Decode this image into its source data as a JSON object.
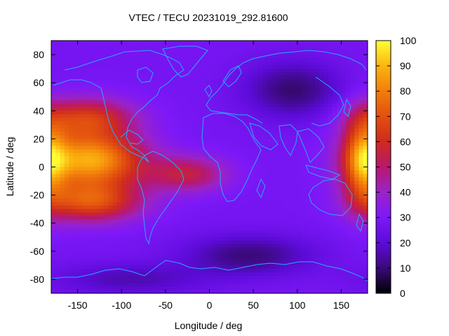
{
  "chart_data": {
    "type": "heatmap",
    "title": "VTEC / TECU 20231019_292.81600",
    "xlabel": "Longitude / deg",
    "ylabel": "Latitude / deg",
    "xlim": [
      -180,
      180
    ],
    "ylim": [
      -90,
      90
    ],
    "xticks": [
      "-150",
      "-100",
      "-50",
      "0",
      "50",
      "100",
      "150"
    ],
    "xtick_values": [
      -150,
      -100,
      -50,
      0,
      50,
      100,
      150
    ],
    "yticks": [
      "80",
      "60",
      "40",
      "20",
      "0",
      "-20",
      "-40",
      "-60",
      "-80"
    ],
    "ytick_values": [
      80,
      60,
      40,
      20,
      0,
      -20,
      -40,
      -60,
      -80
    ],
    "colorbar": {
      "range": [
        0,
        100
      ],
      "ticks": [
        "100",
        "90",
        "80",
        "70",
        "60",
        "50",
        "40",
        "30",
        "20",
        "10",
        "0"
      ],
      "tick_values": [
        100,
        90,
        80,
        70,
        60,
        50,
        40,
        30,
        20,
        10,
        0
      ],
      "palette": "black-purple-red-orange-yellow"
    },
    "field_features": [
      {
        "name": "Pacific equatorial maximum",
        "lon": -135,
        "lat": 5,
        "value": 88
      },
      {
        "name": "Pacific southern crest",
        "lon": -135,
        "lat": -25,
        "value": 68
      },
      {
        "name": "North Pacific crest",
        "lon": -140,
        "lat": 35,
        "value": 62
      },
      {
        "name": "South Atlantic tongue",
        "lon": -25,
        "lat": -5,
        "value": 54
      },
      {
        "name": "West Pacific eastern edge",
        "lon": 175,
        "lat": 5,
        "value": 70
      },
      {
        "name": "Central Asia minimum",
        "lon": 95,
        "lat": 55,
        "value": 9
      },
      {
        "name": "Southern Ocean minimum",
        "lon": 45,
        "lat": -63,
        "value": 10
      },
      {
        "name": "Antarctic pacific trough",
        "lon": -90,
        "lat": -80,
        "value": 16
      }
    ],
    "background_value": 28
  }
}
